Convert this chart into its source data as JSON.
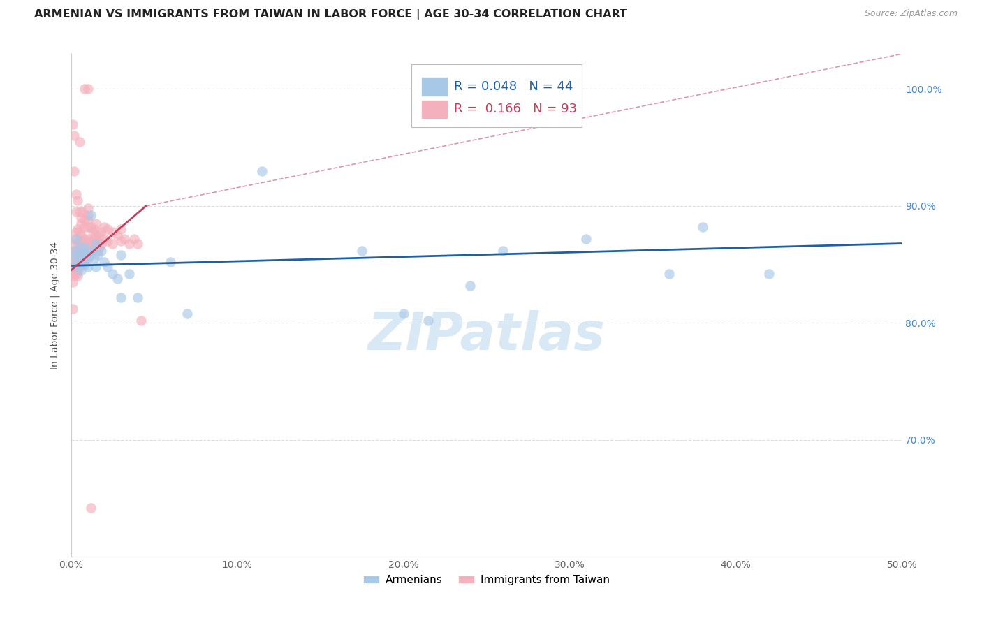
{
  "title": "ARMENIAN VS IMMIGRANTS FROM TAIWAN IN LABOR FORCE | AGE 30-34 CORRELATION CHART",
  "source": "Source: ZipAtlas.com",
  "ylabel": "In Labor Force | Age 30-34",
  "x_min": 0.0,
  "x_max": 0.5,
  "y_min": 0.6,
  "y_max": 1.03,
  "x_ticks": [
    0.0,
    0.1,
    0.2,
    0.3,
    0.4,
    0.5
  ],
  "x_tick_labels": [
    "0.0%",
    "10.0%",
    "20.0%",
    "30.0%",
    "40.0%",
    "50.0%"
  ],
  "y_ticks": [
    0.7,
    0.8,
    0.9,
    1.0
  ],
  "y_tick_labels": [
    "70.0%",
    "80.0%",
    "90.0%",
    "100.0%"
  ],
  "bottom_legend": [
    "Armenians",
    "Immigrants from Taiwan"
  ],
  "blue_color": "#a8c8e8",
  "pink_color": "#f4b0bc",
  "blue_line_color": "#2060a0",
  "pink_line_color": "#c04060",
  "watermark": "ZIPatlas",
  "blue_trend": [
    0.0,
    0.5,
    0.849,
    0.868
  ],
  "pink_trend_solid": [
    0.0,
    0.045,
    0.845,
    0.9
  ],
  "pink_trend_dashed": [
    0.045,
    0.5,
    0.9,
    1.03
  ],
  "blue_dots": [
    [
      0.001,
      0.855
    ],
    [
      0.002,
      0.862
    ],
    [
      0.003,
      0.848
    ],
    [
      0.003,
      0.872
    ],
    [
      0.004,
      0.858
    ],
    [
      0.005,
      0.852
    ],
    [
      0.005,
      0.865
    ],
    [
      0.006,
      0.845
    ],
    [
      0.006,
      0.858
    ],
    [
      0.007,
      0.86
    ],
    [
      0.008,
      0.85
    ],
    [
      0.008,
      0.865
    ],
    [
      0.009,
      0.855
    ],
    [
      0.01,
      0.862
    ],
    [
      0.01,
      0.848
    ],
    [
      0.011,
      0.858
    ],
    [
      0.012,
      0.892
    ],
    [
      0.012,
      0.858
    ],
    [
      0.013,
      0.862
    ],
    [
      0.014,
      0.855
    ],
    [
      0.015,
      0.868
    ],
    [
      0.015,
      0.848
    ],
    [
      0.016,
      0.858
    ],
    [
      0.018,
      0.862
    ],
    [
      0.02,
      0.852
    ],
    [
      0.022,
      0.848
    ],
    [
      0.025,
      0.842
    ],
    [
      0.028,
      0.838
    ],
    [
      0.03,
      0.822
    ],
    [
      0.03,
      0.858
    ],
    [
      0.035,
      0.842
    ],
    [
      0.04,
      0.822
    ],
    [
      0.06,
      0.852
    ],
    [
      0.07,
      0.808
    ],
    [
      0.115,
      0.93
    ],
    [
      0.175,
      0.862
    ],
    [
      0.2,
      0.808
    ],
    [
      0.215,
      0.802
    ],
    [
      0.24,
      0.832
    ],
    [
      0.26,
      0.862
    ],
    [
      0.31,
      0.872
    ],
    [
      0.36,
      0.842
    ],
    [
      0.38,
      0.882
    ],
    [
      0.42,
      0.842
    ]
  ],
  "pink_dots": [
    [
      0.001,
      0.858
    ],
    [
      0.001,
      0.852
    ],
    [
      0.001,
      0.848
    ],
    [
      0.001,
      0.842
    ],
    [
      0.001,
      0.835
    ],
    [
      0.001,
      0.97
    ],
    [
      0.001,
      0.812
    ],
    [
      0.002,
      0.872
    ],
    [
      0.002,
      0.862
    ],
    [
      0.002,
      0.855
    ],
    [
      0.002,
      0.848
    ],
    [
      0.002,
      0.84
    ],
    [
      0.002,
      0.93
    ],
    [
      0.002,
      0.96
    ],
    [
      0.003,
      0.878
    ],
    [
      0.003,
      0.868
    ],
    [
      0.003,
      0.862
    ],
    [
      0.003,
      0.855
    ],
    [
      0.003,
      0.848
    ],
    [
      0.003,
      0.842
    ],
    [
      0.003,
      0.91
    ],
    [
      0.003,
      0.895
    ],
    [
      0.004,
      0.88
    ],
    [
      0.004,
      0.868
    ],
    [
      0.004,
      0.862
    ],
    [
      0.004,
      0.852
    ],
    [
      0.004,
      0.845
    ],
    [
      0.004,
      0.84
    ],
    [
      0.004,
      0.905
    ],
    [
      0.005,
      0.878
    ],
    [
      0.005,
      0.87
    ],
    [
      0.005,
      0.862
    ],
    [
      0.005,
      0.855
    ],
    [
      0.005,
      0.848
    ],
    [
      0.005,
      0.895
    ],
    [
      0.005,
      0.955
    ],
    [
      0.006,
      0.875
    ],
    [
      0.006,
      0.865
    ],
    [
      0.006,
      0.858
    ],
    [
      0.006,
      0.85
    ],
    [
      0.006,
      0.89
    ],
    [
      0.006,
      0.885
    ],
    [
      0.007,
      0.87
    ],
    [
      0.007,
      0.862
    ],
    [
      0.007,
      0.855
    ],
    [
      0.007,
      0.895
    ],
    [
      0.008,
      0.872
    ],
    [
      0.008,
      0.862
    ],
    [
      0.008,
      0.855
    ],
    [
      0.008,
      0.888
    ],
    [
      0.008,
      0.882
    ],
    [
      0.008,
      1.0
    ],
    [
      0.009,
      0.868
    ],
    [
      0.009,
      0.858
    ],
    [
      0.01,
      0.872
    ],
    [
      0.01,
      0.862
    ],
    [
      0.01,
      0.855
    ],
    [
      0.01,
      0.898
    ],
    [
      0.01,
      0.892
    ],
    [
      0.01,
      0.888
    ],
    [
      0.01,
      0.882
    ],
    [
      0.01,
      1.0
    ],
    [
      0.011,
      0.868
    ],
    [
      0.011,
      0.858
    ],
    [
      0.012,
      0.882
    ],
    [
      0.012,
      0.87
    ],
    [
      0.012,
      0.862
    ],
    [
      0.013,
      0.878
    ],
    [
      0.013,
      0.868
    ],
    [
      0.014,
      0.88
    ],
    [
      0.014,
      0.872
    ],
    [
      0.014,
      0.865
    ],
    [
      0.015,
      0.885
    ],
    [
      0.015,
      0.875
    ],
    [
      0.015,
      0.865
    ],
    [
      0.016,
      0.87
    ],
    [
      0.016,
      0.862
    ],
    [
      0.017,
      0.875
    ],
    [
      0.017,
      0.865
    ],
    [
      0.018,
      0.878
    ],
    [
      0.018,
      0.868
    ],
    [
      0.02,
      0.882
    ],
    [
      0.02,
      0.872
    ],
    [
      0.022,
      0.88
    ],
    [
      0.022,
      0.87
    ],
    [
      0.025,
      0.878
    ],
    [
      0.025,
      0.868
    ],
    [
      0.028,
      0.875
    ],
    [
      0.03,
      0.88
    ],
    [
      0.03,
      0.87
    ],
    [
      0.032,
      0.872
    ],
    [
      0.035,
      0.868
    ],
    [
      0.038,
      0.872
    ],
    [
      0.04,
      0.868
    ],
    [
      0.042,
      0.802
    ],
    [
      0.012,
      0.642
    ]
  ]
}
